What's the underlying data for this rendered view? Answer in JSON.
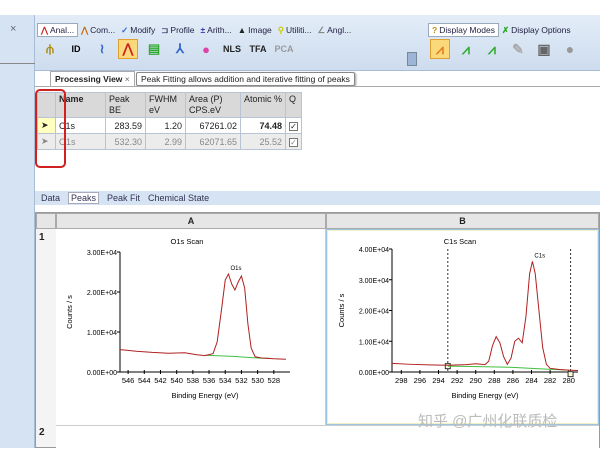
{
  "left_panel": {
    "close": "×"
  },
  "ribbon": {
    "tabs": [
      {
        "label": "Anal...",
        "icon": "peak-icon",
        "active": true
      },
      {
        "label": "Com...",
        "icon": "compare-icon"
      },
      {
        "label": "Modify",
        "icon": "modify-icon"
      },
      {
        "label": "Profile",
        "icon": "profile-icon"
      },
      {
        "label": "Arith...",
        "icon": "arithmetic-icon"
      },
      {
        "label": "Image",
        "icon": "image-icon"
      },
      {
        "label": "Utiliti...",
        "icon": "utilities-icon"
      },
      {
        "label": "Angl...",
        "icon": "angle-icon"
      }
    ],
    "tabs_right": [
      {
        "label": "Display Modes",
        "icon": "help-icon",
        "active": true
      },
      {
        "label": "Display Options",
        "icon": "options-icon"
      }
    ],
    "tools": [
      {
        "label": "",
        "icon": "survey-id-icon"
      },
      {
        "label": "ID",
        "icon": "id-icon"
      },
      {
        "label": "",
        "icon": "peak-id-icon"
      },
      {
        "label": "",
        "icon": "peak-fit-icon",
        "selected": true
      },
      {
        "label": "",
        "icon": "quantify-icon"
      },
      {
        "label": "",
        "icon": "chemical-state-icon"
      },
      {
        "label": "",
        "icon": "flask-icon"
      },
      {
        "label": "NLS",
        "icon": "nls-icon"
      },
      {
        "label": "TFA",
        "icon": "tfa-icon"
      },
      {
        "label": "PCA",
        "icon": "pca-icon"
      }
    ],
    "display_tools": [
      "display-spectrum-icon",
      "display-overlay-icon",
      "display-stack-icon",
      "display-3d-icon",
      "display-map-icon",
      "display-globe-icon"
    ]
  },
  "processing_tab": {
    "label": "Processing View",
    "close": "×"
  },
  "tooltip": "Peak Fitting allows addition and iterative fitting of peaks",
  "table": {
    "headers": [
      "Name",
      "Peak BE",
      "FWHM eV",
      "Area (P) CPS.eV",
      "Atomic %",
      "Q"
    ],
    "rows": [
      {
        "marker": "➤",
        "name": "C1s",
        "be": "283.59",
        "fwhm": "1.20",
        "area": "67261.02",
        "atomic": "74.48",
        "q": "✓"
      },
      {
        "marker": "➤",
        "name": "O1s",
        "be": "532.30",
        "fwhm": "2.99",
        "area": "62071.65",
        "atomic": "25.52",
        "q": "✓"
      }
    ]
  },
  "bottom_tabs": [
    {
      "label": "Data"
    },
    {
      "label": "Peaks",
      "active": true
    },
    {
      "label": "Peak Fit"
    },
    {
      "label": "Chemical State"
    }
  ],
  "grid": {
    "columns": [
      "A",
      "B"
    ],
    "rows": [
      "1",
      "2"
    ]
  },
  "watermark": "知乎 @广州化联质检",
  "colors": {
    "spectrum": "#b02020",
    "background_line": "#40c040",
    "accent": "#fbd87a",
    "highlight_box": "#d02020"
  },
  "chart_data": [
    {
      "type": "line",
      "title": "O1s Scan",
      "xlabel": "Binding Energy (eV)",
      "ylabel": "Counts / s",
      "xlim": [
        547,
        526
      ],
      "ylim": [
        0,
        30000
      ],
      "xticks": [
        546,
        544,
        542,
        540,
        538,
        536,
        534,
        532,
        530,
        528
      ],
      "yticks": [
        "0.00E+00",
        "1.00E+04",
        "2.00E+04",
        "3.00E+04"
      ],
      "ytick_values": [
        0,
        10000,
        20000,
        30000
      ],
      "annotation": "O1s",
      "series": [
        {
          "x": [
            547,
            545,
            543,
            541,
            539,
            537.5,
            536.5,
            535.5,
            535,
            534.5,
            534,
            533.6,
            533.2,
            532.8,
            532.4,
            532,
            531.6,
            531.2,
            530.8,
            530.3,
            529.5,
            528,
            526.5
          ],
          "y": [
            5600,
            5200,
            4900,
            4700,
            4800,
            4300,
            4100,
            4600,
            7500,
            15000,
            23000,
            24500,
            22000,
            20500,
            22500,
            24000,
            21000,
            12000,
            6000,
            3800,
            3500,
            3300,
            3200
          ]
        },
        {
          "x": [
            536.5,
            533,
            530,
            528.5
          ],
          "y": [
            4200,
            3900,
            3500,
            3400
          ]
        }
      ]
    },
    {
      "type": "line",
      "title": "C1s Scan",
      "xlabel": "Binding Energy (eV)",
      "ylabel": "Counts / s",
      "xlim": [
        299,
        279
      ],
      "ylim": [
        0,
        40000
      ],
      "xticks": [
        298,
        296,
        294,
        292,
        290,
        288,
        286,
        284,
        282,
        280
      ],
      "yticks": [
        "0.00E+00",
        "1.00E+04",
        "2.00E+04",
        "3.00E+04",
        "4.00E+04"
      ],
      "ytick_values": [
        0,
        10000,
        20000,
        30000,
        40000
      ],
      "annotation": "C1s",
      "markers": [
        293,
        279.8
      ],
      "series": [
        {
          "x": [
            299,
            297,
            295,
            293,
            291,
            290,
            289,
            288.6,
            288.2,
            287.8,
            287.4,
            287,
            286.6,
            286.2,
            285.8,
            285.4,
            285,
            284.6,
            284.2,
            283.9,
            283.6,
            283.2,
            282.8,
            282.4,
            282,
            281,
            280,
            279
          ],
          "y": [
            2800,
            2500,
            2300,
            2200,
            2400,
            2700,
            2400,
            3500,
            8500,
            11500,
            9500,
            5000,
            2500,
            4500,
            10000,
            11000,
            9500,
            18000,
            32000,
            36000,
            32000,
            20000,
            8000,
            2500,
            1200,
            800,
            600,
            500
          ]
        },
        {
          "x": [
            293,
            289,
            286,
            283,
            280
          ],
          "y": [
            1900,
            1700,
            1500,
            1000,
            600
          ]
        }
      ]
    }
  ]
}
